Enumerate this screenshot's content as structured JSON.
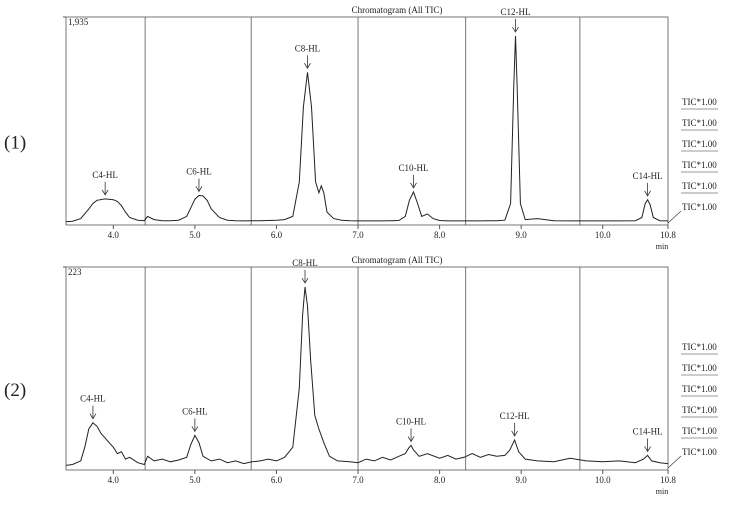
{
  "chart_data": [
    {
      "type": "line",
      "panel_label": "(1)",
      "title": "Chromatogram (All TIC)",
      "xlabel": "min",
      "xlim": [
        3.42,
        10.8
      ],
      "xticks": [
        {
          "value": 4,
          "label": "4.0"
        },
        {
          "value": 5,
          "label": "5.0"
        },
        {
          "value": 6,
          "label": "6.0"
        },
        {
          "value": 7,
          "label": "7.0"
        },
        {
          "value": 8,
          "label": "8.0"
        },
        {
          "value": 9,
          "label": "9.0"
        },
        {
          "value": 10,
          "label": "10.0"
        },
        10.8
      ],
      "ylim": [
        0,
        1935
      ],
      "yticks": [
        {
          "value": 1935,
          "label": "1,935"
        }
      ],
      "dividers": [
        4.39,
        5.69,
        7.0,
        8.32,
        9.72
      ],
      "legend": [
        "TIC*1.00",
        "TIC*1.00",
        "TIC*1.00",
        "TIC*1.00",
        "TIC*1.00",
        "TIC*1.00"
      ],
      "series": [
        {
          "color": "#222222",
          "x": [
            3.42,
            3.5,
            3.6,
            3.7,
            3.75,
            3.8,
            3.9,
            4.0,
            4.05,
            4.1,
            4.15,
            4.2,
            4.3,
            4.38,
            4.42,
            4.5,
            4.6,
            4.7,
            4.8,
            4.9,
            4.95,
            5.0,
            5.05,
            5.1,
            5.15,
            5.2,
            5.3,
            5.4,
            5.5,
            5.6,
            5.7,
            5.8,
            5.9,
            6.0,
            6.1,
            6.2,
            6.28,
            6.33,
            6.38,
            6.43,
            6.48,
            6.52,
            6.55,
            6.58,
            6.62,
            6.7,
            6.8,
            6.9,
            7.0,
            7.1,
            7.2,
            7.3,
            7.4,
            7.5,
            7.58,
            7.63,
            7.68,
            7.73,
            7.78,
            7.85,
            7.92,
            8.0,
            8.1,
            8.2,
            8.3,
            8.4,
            8.5,
            8.6,
            8.7,
            8.8,
            8.87,
            8.91,
            8.93,
            8.95,
            8.99,
            9.05,
            9.2,
            9.4,
            9.6,
            9.8,
            10.0,
            10.2,
            10.4,
            10.48,
            10.52,
            10.55,
            10.58,
            10.62,
            10.7,
            10.8
          ],
          "values": [
            30,
            35,
            60,
            150,
            200,
            230,
            243,
            235,
            220,
            180,
            120,
            70,
            45,
            40,
            80,
            50,
            40,
            40,
            45,
            80,
            160,
            240,
            275,
            270,
            230,
            150,
            70,
            45,
            40,
            38,
            40,
            40,
            42,
            45,
            50,
            80,
            400,
            1100,
            1421,
            1100,
            400,
            300,
            365,
            300,
            120,
            60,
            45,
            40,
            38,
            38,
            38,
            38,
            40,
            42,
            80,
            230,
            308,
            200,
            80,
            103,
            60,
            42,
            38,
            38,
            38,
            38,
            38,
            40,
            40,
            45,
            200,
            1300,
            1758,
            1300,
            200,
            50,
            60,
            40,
            38,
            38,
            38,
            38,
            40,
            70,
            200,
            234,
            190,
            70,
            40,
            38
          ]
        }
      ],
      "annotations": [
        {
          "label": "C4-HL",
          "x": 3.9
        },
        {
          "label": "C6-HL",
          "x": 5.05
        },
        {
          "label": "C8-HL",
          "x": 6.38
        },
        {
          "label": "C10-HL",
          "x": 7.68
        },
        {
          "label": "C12-HL",
          "x": 8.93
        },
        {
          "label": "C14-HL",
          "x": 10.55
        }
      ]
    },
    {
      "type": "line",
      "panel_label": "(2)",
      "title": "Chromatogram (All TIC)",
      "xlabel": "min",
      "xlim": [
        3.42,
        10.8
      ],
      "xticks": [
        {
          "value": 4,
          "label": "4.0"
        },
        {
          "value": 5,
          "label": "5.0"
        },
        {
          "value": 6,
          "label": "6.0"
        },
        {
          "value": 7,
          "label": "7.0"
        },
        {
          "value": 8,
          "label": "8.0"
        },
        {
          "value": 9,
          "label": "9.0"
        },
        {
          "value": 10,
          "label": "10.0"
        },
        10.8
      ],
      "ylim": [
        0,
        223
      ],
      "yticks": [
        223
      ],
      "dividers": [
        4.39,
        5.69,
        7.0,
        8.32,
        9.72
      ],
      "legend": [
        "TIC*1.00",
        "TIC*1.00",
        "TIC*1.00",
        "TIC*1.00",
        "TIC*1.00",
        "TIC*1.00"
      ],
      "series": [
        {
          "color": "#222222",
          "x": [
            3.42,
            3.5,
            3.6,
            3.65,
            3.7,
            3.75,
            3.8,
            3.85,
            3.9,
            3.95,
            4.0,
            4.05,
            4.1,
            4.15,
            4.2,
            4.3,
            4.38,
            4.42,
            4.5,
            4.6,
            4.7,
            4.8,
            4.9,
            4.95,
            5.0,
            5.05,
            5.1,
            5.2,
            5.3,
            5.4,
            5.5,
            5.6,
            5.7,
            5.8,
            5.9,
            6.0,
            6.1,
            6.2,
            6.28,
            6.32,
            6.35,
            6.38,
            6.42,
            6.47,
            6.52,
            6.58,
            6.65,
            6.75,
            6.9,
            7.0,
            7.1,
            7.2,
            7.3,
            7.4,
            7.5,
            7.58,
            7.62,
            7.65,
            7.68,
            7.75,
            7.85,
            8.0,
            8.1,
            8.2,
            8.3,
            8.4,
            8.5,
            8.6,
            8.7,
            8.8,
            8.86,
            8.92,
            8.97,
            9.05,
            9.2,
            9.4,
            9.6,
            9.8,
            10.0,
            10.2,
            10.4,
            10.5,
            10.55,
            10.6,
            10.7,
            10.8
          ],
          "values": [
            5,
            6,
            10,
            25,
            45,
            52,
            48,
            40,
            35,
            30,
            25,
            18,
            20,
            12,
            14,
            8,
            6,
            15,
            10,
            12,
            9,
            11,
            14,
            28,
            38,
            30,
            15,
            10,
            12,
            8,
            10,
            7,
            9,
            10,
            12,
            10,
            14,
            25,
            90,
            170,
            201,
            180,
            120,
            60,
            45,
            30,
            15,
            10,
            9,
            8,
            12,
            10,
            14,
            11,
            15,
            18,
            24,
            27,
            22,
            15,
            18,
            13,
            16,
            12,
            14,
            18,
            14,
            17,
            15,
            16,
            22,
            33,
            20,
            12,
            10,
            9,
            13,
            10,
            9,
            10,
            8,
            12,
            16,
            10,
            8,
            7
          ]
        }
      ],
      "annotations": [
        {
          "label": "C4-HL",
          "x": 3.75
        },
        {
          "label": "C6-HL",
          "x": 5.0
        },
        {
          "label": "C8-HL",
          "x": 6.35
        },
        {
          "label": "C10-HL",
          "x": 7.65
        },
        {
          "label": "C12-HL",
          "x": 8.92
        },
        {
          "label": "C14-HL",
          "x": 10.55
        }
      ]
    }
  ]
}
